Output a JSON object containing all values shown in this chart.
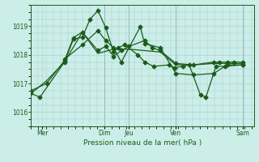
{
  "bg_color": "#cceee8",
  "grid_color": "#aacccc",
  "line_color": "#1a5c1a",
  "xlabel": "Pression niveau de la mer( hPa )",
  "ylim": [
    1015.5,
    1019.75
  ],
  "yticks": [
    1016,
    1017,
    1018,
    1019
  ],
  "xtick_labels": [
    "Mer",
    "Dim",
    "Jeu",
    "Ven",
    "Sam"
  ],
  "xtick_positions": [
    0.05,
    0.33,
    0.44,
    0.65,
    0.95
  ],
  "vline_positions": [
    0.33,
    0.44,
    0.65,
    0.95
  ],
  "series1_x": [
    0.0,
    0.04,
    0.15,
    0.19,
    0.23,
    0.265,
    0.3,
    0.335,
    0.37,
    0.39,
    0.42,
    0.48,
    0.51,
    0.55,
    0.62,
    0.645,
    0.68,
    0.71,
    0.76,
    0.785,
    0.83,
    0.87,
    0.95
  ],
  "series1_y": [
    1016.65,
    1016.52,
    1017.75,
    1018.55,
    1018.62,
    1019.25,
    1019.55,
    1018.95,
    1018.1,
    1018.25,
    1018.35,
    1018.0,
    1017.75,
    1017.6,
    1017.65,
    1017.55,
    1017.6,
    1017.65,
    1016.6,
    1016.52,
    1017.6,
    1017.6,
    1017.65
  ],
  "series2_x": [
    0.0,
    0.07,
    0.15,
    0.19,
    0.23,
    0.3,
    0.335,
    0.37,
    0.405,
    0.44,
    0.51,
    0.545,
    0.58,
    0.65,
    0.73,
    0.82,
    0.845,
    0.88,
    0.91,
    0.95
  ],
  "series2_y": [
    1016.75,
    1017.0,
    1017.8,
    1018.6,
    1018.8,
    1018.15,
    1018.3,
    1017.95,
    1018.15,
    1018.3,
    1018.5,
    1018.25,
    1018.15,
    1017.7,
    1017.65,
    1017.75,
    1017.75,
    1017.75,
    1017.75,
    1017.75
  ],
  "series3_x": [
    0.0,
    0.07,
    0.15,
    0.23,
    0.3,
    0.37,
    0.44,
    0.51,
    0.58,
    0.65,
    0.73,
    0.82,
    0.88,
    0.95
  ],
  "series3_y": [
    1016.65,
    1017.1,
    1017.75,
    1018.8,
    1018.05,
    1018.2,
    1018.2,
    1018.15,
    1018.1,
    1017.65,
    1017.65,
    1017.7,
    1017.7,
    1017.7
  ],
  "series4_x": [
    0.15,
    0.23,
    0.3,
    0.335,
    0.37,
    0.405,
    0.49,
    0.51,
    0.58,
    0.65,
    0.73,
    0.82,
    0.88,
    0.95
  ],
  "series4_y": [
    1017.85,
    1018.35,
    1018.85,
    1018.5,
    1018.25,
    1017.75,
    1018.98,
    1018.4,
    1018.25,
    1017.35,
    1017.3,
    1017.35,
    1017.65,
    1017.65
  ],
  "figsize": [
    3.2,
    2.0
  ],
  "dpi": 100
}
